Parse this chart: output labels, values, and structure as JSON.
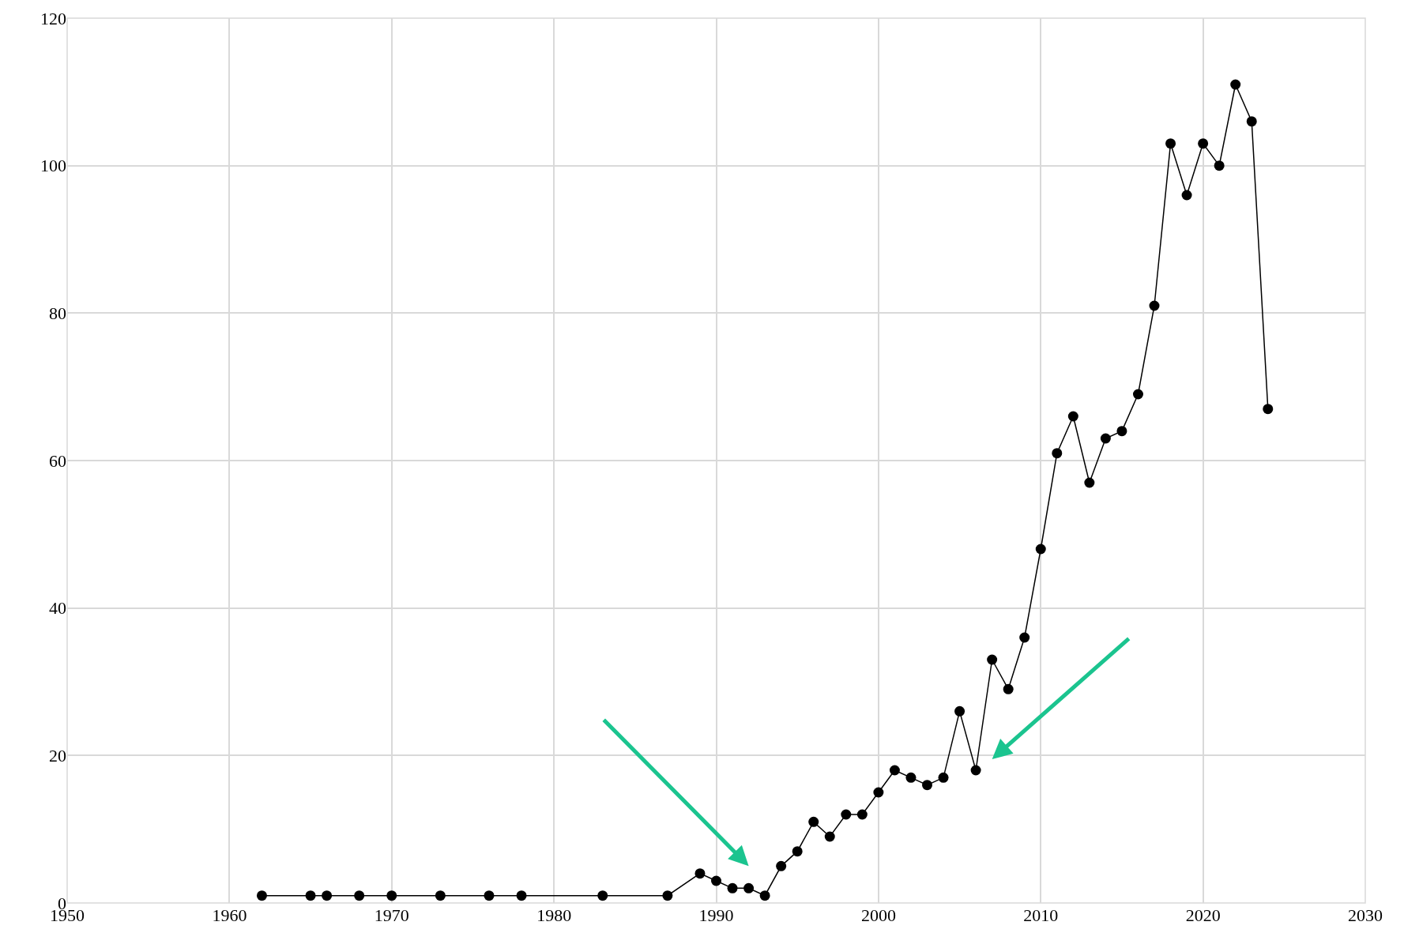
{
  "chart_data": {
    "type": "line",
    "x": [
      1962,
      1965,
      1966,
      1968,
      1970,
      1973,
      1976,
      1978,
      1983,
      1987,
      1989,
      1990,
      1991,
      1992,
      1993,
      1994,
      1995,
      1996,
      1997,
      1998,
      1999,
      2000,
      2001,
      2002,
      2003,
      2004,
      2005,
      2006,
      2007,
      2008,
      2009,
      2010,
      2011,
      2012,
      2013,
      2014,
      2015,
      2016,
      2017,
      2018,
      2019,
      2020,
      2021,
      2022,
      2023,
      2024
    ],
    "series": [
      {
        "color": "#000000",
        "values": [
          1,
          1,
          1,
          1,
          1,
          1,
          1,
          1,
          1,
          1,
          4,
          3,
          2,
          2,
          1,
          5,
          7,
          11,
          9,
          12,
          12,
          15,
          18,
          17,
          16,
          17,
          26,
          18,
          33,
          29,
          36,
          48,
          61,
          66,
          57,
          63,
          64,
          69,
          81,
          103,
          96,
          103,
          100,
          111,
          106,
          67
        ]
      }
    ],
    "xlim": [
      1950,
      2030
    ],
    "xticks": [
      1950,
      1960,
      1970,
      1980,
      1990,
      2000,
      2010,
      2020,
      2030
    ],
    "ylim": [
      0,
      120
    ],
    "yticks": [
      0,
      20,
      40,
      60,
      80,
      100,
      120
    ],
    "grid": true,
    "marker": "circle",
    "line_style": "solid"
  }
}
